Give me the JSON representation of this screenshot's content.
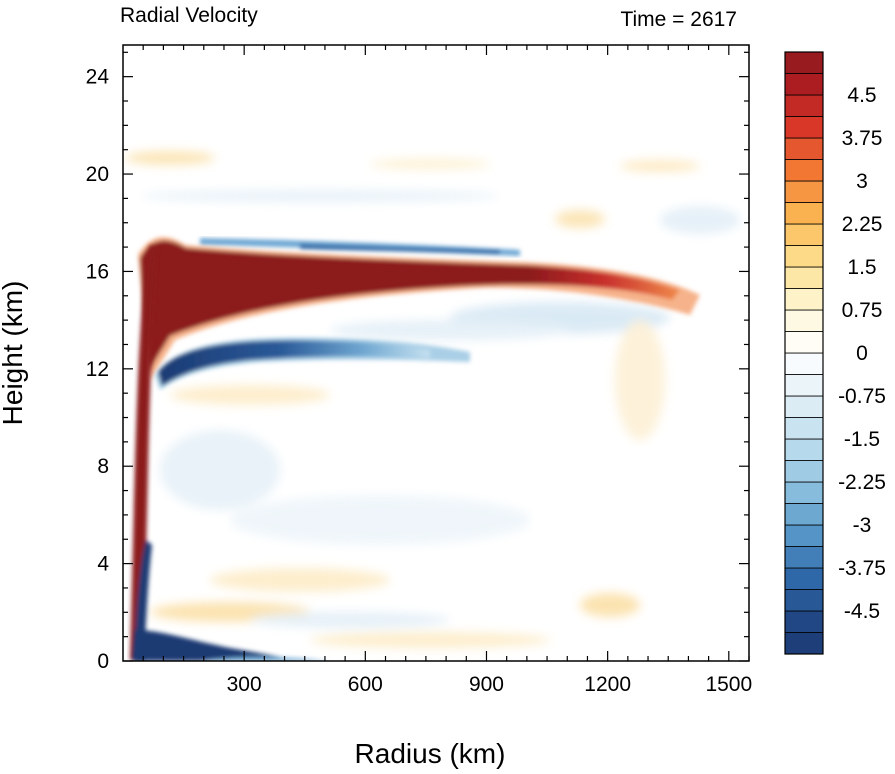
{
  "chart_data": {
    "type": "heatmap",
    "title_left": "Radial Velocity",
    "title_right": "Time = 2617",
    "xlabel": "Radius (km)",
    "ylabel": "Height (km)",
    "xlim": [
      0,
      1550
    ],
    "ylim": [
      0,
      25.3
    ],
    "xticks": [
      "300",
      "600",
      "900",
      "1200",
      "1500"
    ],
    "xtick_values": [
      300,
      600,
      900,
      1200,
      1500
    ],
    "yticks": [
      "0",
      "4",
      "8",
      "12",
      "16",
      "20",
      "24"
    ],
    "ytick_values": [
      0,
      4,
      8,
      12,
      16,
      20,
      24
    ],
    "colorbar": {
      "labels": [
        "4.5",
        "3.75",
        "3",
        "2.25",
        "1.5",
        "0.75",
        "0",
        "-0.75",
        "-1.5",
        "-2.25",
        "-3",
        "-3.75",
        "-4.5"
      ],
      "label_values": [
        4.5,
        3.75,
        3,
        2.25,
        1.5,
        0.75,
        0,
        -0.75,
        -1.5,
        -2.25,
        -3,
        -3.75,
        -4.5
      ],
      "range": [
        -5.25,
        5.25
      ],
      "step": 0.375
    },
    "colors": {
      "strong_outflow": "#8c1a1d",
      "strong_inflow": "#1b3a73",
      "neutral": "#ffffff"
    },
    "features": [
      {
        "name": "upper-outflow-layer",
        "sign": "positive",
        "radius_range": [
          50,
          1400
        ],
        "height_range": [
          13.5,
          17.5
        ],
        "peak": 5.25
      },
      {
        "name": "upper-inflow-layer",
        "sign": "negative",
        "radius_range": [
          100,
          700
        ],
        "height_range": [
          11.8,
          13.4
        ],
        "peak": -5.0
      },
      {
        "name": "boundary-layer-inflow",
        "sign": "negative",
        "radius_range": [
          40,
          400
        ],
        "height_range": [
          0,
          1.5
        ],
        "peak": -5.25
      },
      {
        "name": "eyewall-outflow",
        "sign": "positive",
        "radius_range": [
          40,
          110
        ],
        "height_range": [
          0.5,
          17
        ],
        "peak": 5.25
      }
    ]
  }
}
